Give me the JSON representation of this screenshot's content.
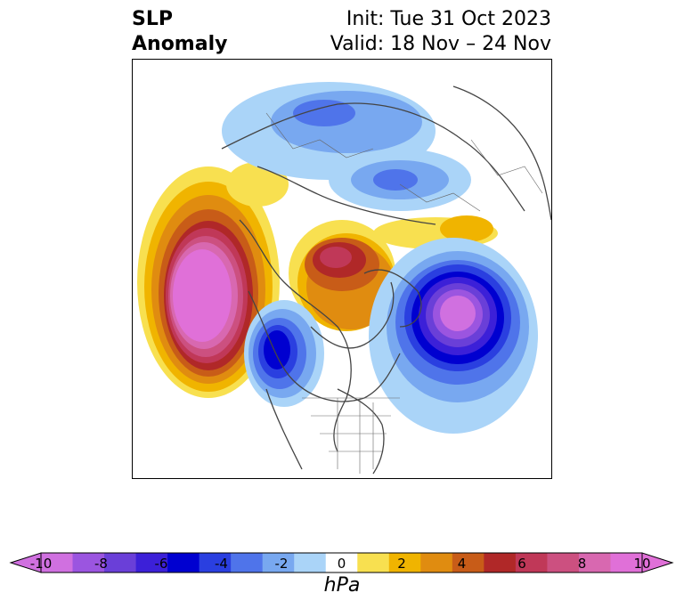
{
  "header": {
    "title_line1": "SLP",
    "title_line2": "Anomaly",
    "init": "Init: Tue 31 Oct 2023",
    "valid": "Valid: 18 Nov – 24 Nov"
  },
  "colorbar": {
    "unit": "hPa",
    "ticks": [
      "-10",
      "-8",
      "-6",
      "-4",
      "-2",
      "0",
      "2",
      "4",
      "6",
      "8",
      "10"
    ],
    "colors": [
      "#d070e0",
      "#9b55e0",
      "#6a3fd8",
      "#3c20d8",
      "#0000d0",
      "#2a3fe0",
      "#4f74ea",
      "#78a8f0",
      "#aad4f8",
      "#ffffff",
      "#f8e050",
      "#f0b400",
      "#e08c10",
      "#c85c18",
      "#b02828",
      "#c03858",
      "#cc5080",
      "#d868b0",
      "#e070d8"
    ]
  }
}
